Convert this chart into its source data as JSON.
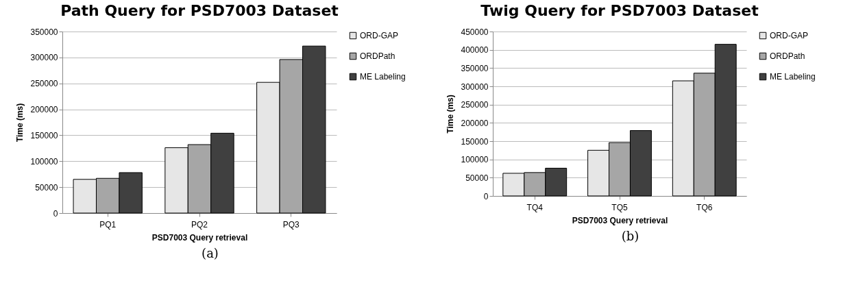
{
  "chart_data": [
    {
      "type": "bar",
      "title": "Path Query for PSD7003 Dataset",
      "xlabel": "PSD7003 Query retrieval",
      "ylabel": "Time (ms)",
      "categories": [
        "PQ1",
        "PQ2",
        "PQ3"
      ],
      "series": [
        {
          "name": "ORD-GAP",
          "color": "#e6e6e6",
          "values": [
            65000,
            126000,
            252000
          ]
        },
        {
          "name": "ORDPath",
          "color": "#a6a6a6",
          "values": [
            67000,
            132000,
            296000
          ]
        },
        {
          "name": "ME Labeling",
          "color": "#404040",
          "values": [
            78000,
            154000,
            322000
          ]
        }
      ],
      "ylim": [
        0,
        350000
      ],
      "yticks": [
        0,
        50000,
        100000,
        150000,
        200000,
        250000,
        300000,
        350000
      ],
      "grid": "y",
      "legend": "right",
      "annotations": [
        "(a)"
      ]
    },
    {
      "type": "bar",
      "title": "Twig Query for PSD7003 Dataset",
      "xlabel": "PSD7003 Query retrieval",
      "ylabel": "Time (ms)",
      "categories": [
        "TQ4",
        "TQ5",
        "TQ6"
      ],
      "series": [
        {
          "name": "ORD-GAP",
          "color": "#e6e6e6",
          "values": [
            62000,
            125000,
            315000
          ]
        },
        {
          "name": "ORDPath",
          "color": "#a6a6a6",
          "values": [
            64000,
            146000,
            336000
          ]
        },
        {
          "name": "ME Labeling",
          "color": "#404040",
          "values": [
            76000,
            179000,
            415000
          ]
        }
      ],
      "ylim": [
        0,
        450000
      ],
      "yticks": [
        0,
        50000,
        100000,
        150000,
        200000,
        250000,
        300000,
        350000,
        400000,
        450000
      ],
      "grid": "y",
      "legend": "right",
      "annotations": [
        "(b)"
      ]
    }
  ]
}
